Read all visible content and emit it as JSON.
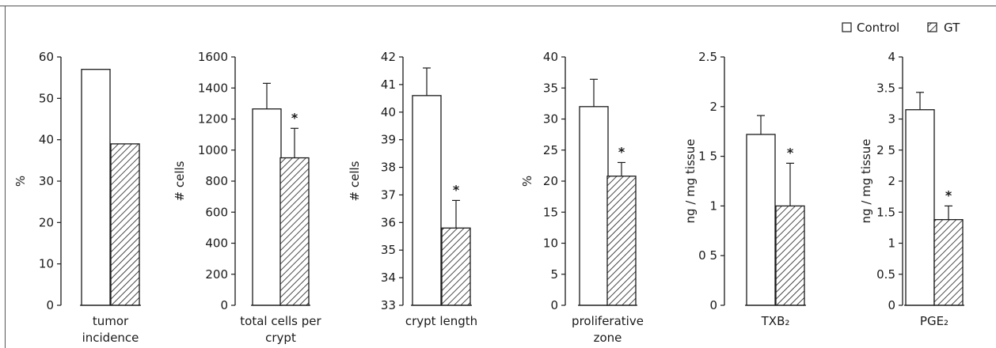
{
  "legend": {
    "control_label": "Control",
    "gt_label": "GT"
  },
  "chart_data": [
    {
      "type": "bar",
      "ylabel": "%",
      "category_lines": [
        "tumor",
        "incidence"
      ],
      "ylim": [
        0,
        60
      ],
      "yticks": [
        0,
        10,
        20,
        30,
        40,
        50,
        60
      ],
      "yticklabels": [
        "0",
        "10",
        "20",
        "30",
        "40",
        "50",
        "60"
      ],
      "series": [
        {
          "name": "Control",
          "value": 57,
          "error": null,
          "significant": false
        },
        {
          "name": "GT",
          "value": 39,
          "error": null,
          "significant": false
        }
      ]
    },
    {
      "type": "bar",
      "ylabel": "# cells",
      "category_lines": [
        "total  cells  per",
        "crypt"
      ],
      "ylim": [
        0,
        1600
      ],
      "yticks": [
        0,
        200,
        400,
        600,
        800,
        1000,
        1200,
        1400,
        1600
      ],
      "yticklabels": [
        "0",
        "200",
        "400",
        "600",
        "800",
        "1000",
        "1200",
        "1400",
        "1600"
      ],
      "series": [
        {
          "name": "Control",
          "value": 1265,
          "error": 165,
          "significant": false
        },
        {
          "name": "GT",
          "value": 950,
          "error": 190,
          "significant": true
        }
      ]
    },
    {
      "type": "bar",
      "ylabel": "# cells",
      "category_lines": [
        "crypt  length"
      ],
      "ylim": [
        33,
        42
      ],
      "yticks": [
        33,
        34,
        35,
        36,
        37,
        38,
        39,
        40,
        41,
        42
      ],
      "yticklabels": [
        "33",
        "34",
        "35",
        "36",
        "37",
        "38",
        "39",
        "40",
        "41",
        "42"
      ],
      "series": [
        {
          "name": "Control",
          "value": 40.6,
          "error": 1.0,
          "significant": false
        },
        {
          "name": "GT",
          "value": 35.8,
          "error": 1.0,
          "significant": true
        }
      ]
    },
    {
      "type": "bar",
      "ylabel": "%",
      "category_lines": [
        "proliferative",
        "zone"
      ],
      "ylim": [
        0,
        40
      ],
      "yticks": [
        0,
        5,
        10,
        15,
        20,
        25,
        30,
        35,
        40
      ],
      "yticklabels": [
        "0",
        "5",
        "10",
        "15",
        "20",
        "25",
        "30",
        "35",
        "40"
      ],
      "series": [
        {
          "name": "Control",
          "value": 32,
          "error": 4.4,
          "significant": false
        },
        {
          "name": "GT",
          "value": 20.8,
          "error": 2.2,
          "significant": true
        }
      ]
    },
    {
      "type": "bar",
      "ylabel": "ng / mg  tissue",
      "category_lines": [
        "TXB₂"
      ],
      "ylim": [
        0,
        2.5
      ],
      "yticks": [
        0,
        0.5,
        1,
        1.5,
        2,
        2.5
      ],
      "yticklabels": [
        "0",
        "0 5",
        "1",
        "1 5",
        "2",
        "2.5"
      ],
      "series": [
        {
          "name": "Control",
          "value": 1.72,
          "error": 0.19,
          "significant": false
        },
        {
          "name": "GT",
          "value": 1.0,
          "error": 0.43,
          "significant": true
        }
      ]
    },
    {
      "type": "bar",
      "ylabel": "ng / mg  tissue",
      "category_lines": [
        "PGE₂"
      ],
      "ylim": [
        0,
        4
      ],
      "yticks": [
        0,
        0.5,
        1,
        1.5,
        2,
        2.5,
        3,
        3.5,
        4
      ],
      "yticklabels": [
        "0",
        "0.5",
        "1",
        "1.5",
        "2",
        "2 5",
        "3",
        "3.5",
        "4"
      ],
      "series": [
        {
          "name": "Control",
          "value": 3.15,
          "error": 0.28,
          "significant": false
        },
        {
          "name": "GT",
          "value": 1.38,
          "error": 0.22,
          "significant": true
        }
      ]
    }
  ]
}
